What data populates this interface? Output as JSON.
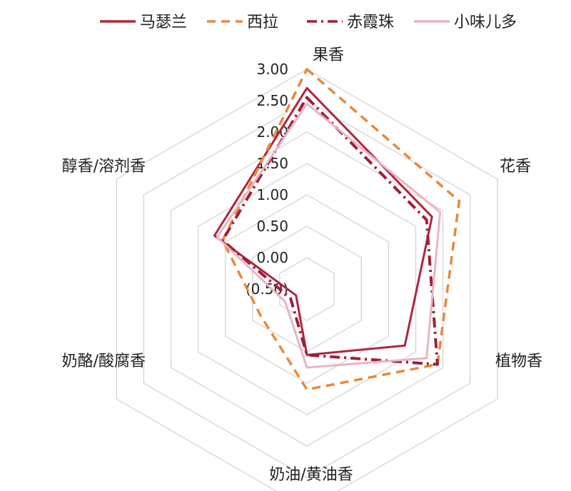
{
  "chart_data": {
    "type": "radar",
    "title": "",
    "axes": [
      "果香",
      "花香",
      "植物香",
      "奶油/黄油香",
      "奶酪/酸腐香",
      "醇香/溶剂香"
    ],
    "ticks": [
      "(0.50)",
      "0.00",
      "0.50",
      "1.00",
      "1.50",
      "2.00",
      "2.50",
      "3.00"
    ],
    "rlim": [
      -0.5,
      3.0
    ],
    "grid": true,
    "legend_position": "top",
    "series": [
      {
        "name": "马瑟兰",
        "values": [
          2.7,
          1.8,
          1.3,
          0.55,
          -0.3,
          1.2
        ],
        "color": "#b3243c",
        "style": "solid"
      },
      {
        "name": "西拉",
        "values": [
          3.0,
          2.3,
          1.9,
          1.1,
          0.35,
          1.05
        ],
        "color": "#e8883a",
        "style": "dashed"
      },
      {
        "name": "赤霞珠",
        "values": [
          2.55,
          1.7,
          1.9,
          0.55,
          -0.2,
          1.05
        ],
        "color": "#a01f35",
        "style": "dashdot"
      },
      {
        "name": "小味儿多",
        "values": [
          2.45,
          1.95,
          1.7,
          0.75,
          -0.1,
          1.15
        ],
        "color": "#e8b4c4",
        "style": "solid"
      }
    ]
  }
}
